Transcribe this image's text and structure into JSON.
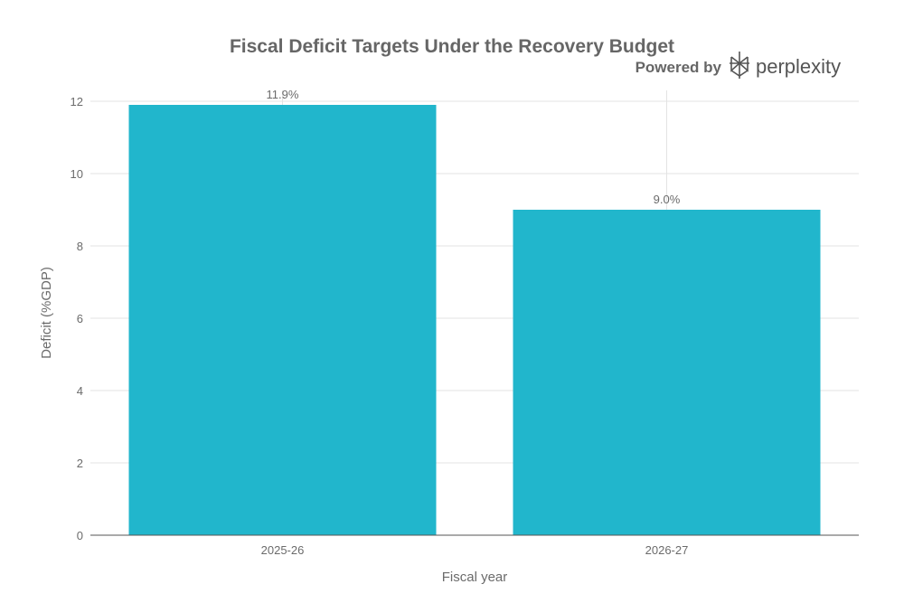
{
  "branding": {
    "powered_by": "Powered by",
    "brand_name": "perplexity"
  },
  "chart_data": {
    "type": "bar",
    "title": "Fiscal Deficit Targets Under the Recovery Budget",
    "xlabel": "Fiscal year",
    "ylabel": "Deficit (%GDP)",
    "categories": [
      "2025-26",
      "2026-27"
    ],
    "values": [
      11.9,
      9.0
    ],
    "data_labels": [
      "11.9%",
      "9.0%"
    ],
    "ylim": [
      0,
      12.3
    ],
    "yticks": [
      0,
      2,
      4,
      6,
      8,
      10,
      12
    ],
    "grid": true,
    "legend": "none",
    "colors": {
      "bar": "#21b6cc",
      "grid": "#e3e3e3",
      "text": "#6b6b6b",
      "title": "#666666"
    }
  }
}
